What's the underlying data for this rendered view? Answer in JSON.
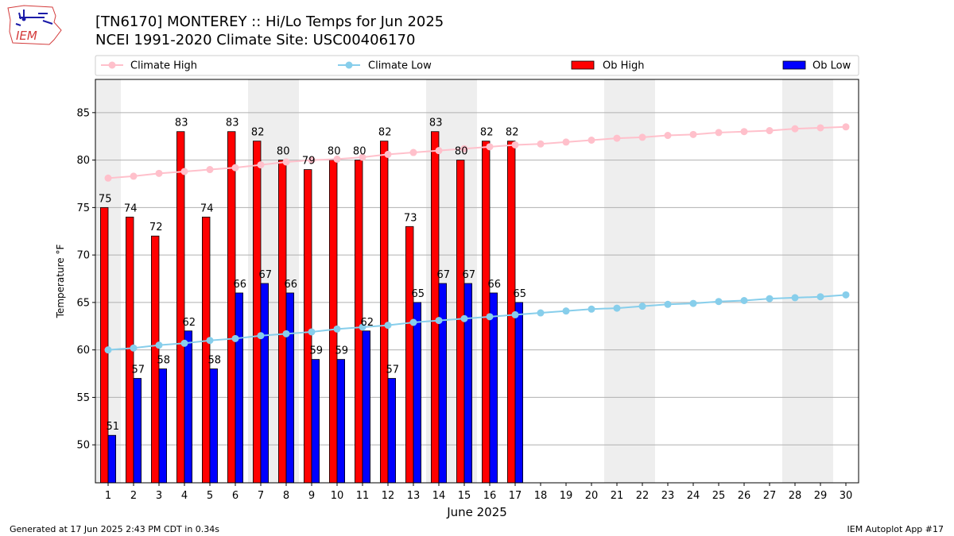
{
  "title_line1": "[TN6170] MONTEREY :: Hi/Lo Temps for Jun 2025",
  "title_line2": "NCEI 1991-2020 Climate Site: USC00406170",
  "footer_left": "Generated at 17 Jun 2025 2:43 PM CDT in 0.34s",
  "footer_right": "IEM Autoplot App #17",
  "logo_text": "IEM",
  "colors": {
    "ob_high": "#ff0000",
    "ob_low": "#0000ff",
    "climate_high": "#ffc0cb",
    "climate_low": "#87ceeb",
    "weekend_shade": "#eeeeee",
    "grid": "#b0b0b0"
  },
  "chart_data": {
    "type": "bar",
    "xlabel": "June 2025",
    "ylabel": "Temperature $^\\circ$F",
    "ylabel_display": "Temperature °F",
    "ylim": [
      46,
      88.5
    ],
    "yticks": [
      50,
      55,
      60,
      65,
      70,
      75,
      80,
      85
    ],
    "grid": "horizontal",
    "legend_position": "top",
    "days": [
      1,
      2,
      3,
      4,
      5,
      6,
      7,
      8,
      9,
      10,
      11,
      12,
      13,
      14,
      15,
      16,
      17,
      18,
      19,
      20,
      21,
      22,
      23,
      24,
      25,
      26,
      27,
      28,
      29,
      30
    ],
    "shaded_days": [
      1,
      7,
      8,
      14,
      15,
      21,
      22,
      28,
      29
    ],
    "legend": [
      "Climate High",
      "Climate Low",
      "Ob High",
      "Ob Low"
    ],
    "series": [
      {
        "name": "Ob High",
        "kind": "bar",
        "values": [
          75,
          74,
          72,
          83,
          74,
          83,
          82,
          80,
          79,
          80,
          80,
          82,
          73,
          83,
          80,
          82,
          82
        ]
      },
      {
        "name": "Ob Low",
        "kind": "bar",
        "values": [
          51,
          57,
          58,
          62,
          58,
          66,
          67,
          66,
          59,
          59,
          62,
          57,
          65,
          67,
          67,
          66,
          65
        ]
      },
      {
        "name": "Climate High",
        "kind": "line",
        "values": [
          78.1,
          78.3,
          78.6,
          78.8,
          79.0,
          79.2,
          79.5,
          79.8,
          80.0,
          80.1,
          80.3,
          80.6,
          80.8,
          81.0,
          81.2,
          81.4,
          81.6,
          81.7,
          81.9,
          82.1,
          82.3,
          82.4,
          82.6,
          82.7,
          82.9,
          83.0,
          83.1,
          83.3,
          83.4,
          83.5
        ]
      },
      {
        "name": "Climate Low",
        "kind": "line",
        "values": [
          60.0,
          60.2,
          60.5,
          60.7,
          61.0,
          61.2,
          61.5,
          61.7,
          61.9,
          62.2,
          62.4,
          62.6,
          62.9,
          63.1,
          63.3,
          63.5,
          63.7,
          63.9,
          64.1,
          64.3,
          64.4,
          64.6,
          64.8,
          64.9,
          65.1,
          65.2,
          65.4,
          65.5,
          65.6,
          65.8
        ]
      }
    ]
  }
}
